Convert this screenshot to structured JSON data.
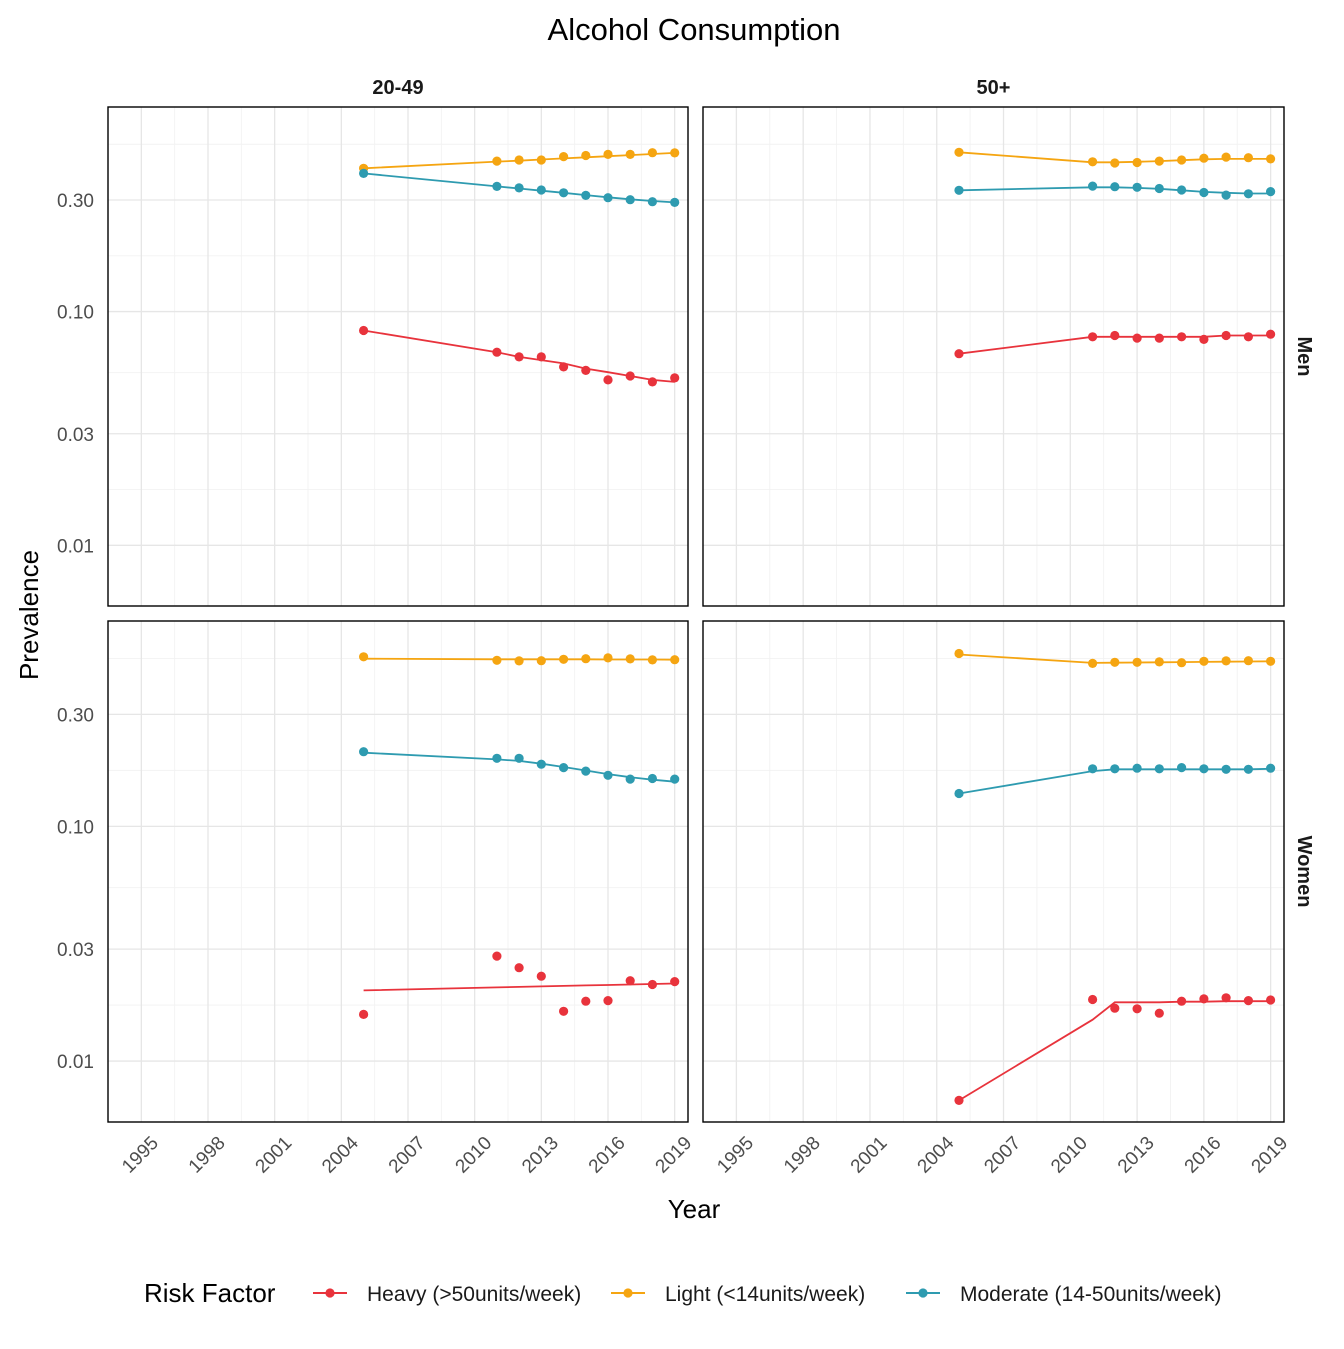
{
  "chart_data": {
    "type": "line",
    "title": "Alcohol Consumption",
    "xlabel": "Year",
    "ylabel": "Prevalence",
    "xlim": [
      1993.5,
      2019.6
    ],
    "x_ticks": [
      1995,
      1998,
      2001,
      2004,
      2007,
      2010,
      2013,
      2016,
      2019
    ],
    "y_scale": "log",
    "ylim": [
      0.0055,
      0.75
    ],
    "y_ticks": [
      0.01,
      0.03,
      0.1,
      0.3
    ],
    "y_tick_labels": [
      "0.01",
      "0.03",
      "0.10",
      "0.30"
    ],
    "grid": true,
    "legend": {
      "title": "Risk Factor",
      "position": "bottom",
      "entries": [
        {
          "label": "Heavy (>50units/week)",
          "color": "#e8333c"
        },
        {
          "label": "Light (<14units/week)",
          "color": "#f5a511"
        },
        {
          "label": "Moderate (14-50units/week)",
          "color": "#2e9bb0"
        }
      ]
    },
    "facet_columns": [
      "20-49",
      "50+"
    ],
    "facet_rows": [
      "Men",
      "Women"
    ],
    "panels": [
      {
        "row": "Men",
        "col": "20-49",
        "series": [
          {
            "name": "Heavy (>50units/week)",
            "x": [
              2005,
              2011,
              2012,
              2013,
              2014,
              2015,
              2016,
              2017,
              2018,
              2019
            ],
            "points": [
              0.083,
              0.067,
              0.064,
              0.064,
              0.058,
              0.056,
              0.051,
              0.053,
              0.05,
              0.052
            ],
            "fit": [
              0.083,
              0.067,
              0.064,
              0.062,
              0.06,
              0.057,
              0.055,
              0.053,
              0.051,
              0.05
            ]
          },
          {
            "name": "Light (<14units/week)",
            "x": [
              2005,
              2011,
              2012,
              2013,
              2014,
              2015,
              2016,
              2017,
              2018,
              2019
            ],
            "points": [
              0.41,
              0.44,
              0.445,
              0.445,
              0.46,
              0.465,
              0.47,
              0.47,
              0.478,
              0.477
            ],
            "fit": [
              0.41,
              0.438,
              0.442,
              0.447,
              0.452,
              0.457,
              0.462,
              0.467,
              0.472,
              0.477
            ]
          },
          {
            "name": "Moderate (14-50units/week)",
            "x": [
              2005,
              2011,
              2012,
              2013,
              2014,
              2015,
              2016,
              2017,
              2018,
              2019
            ],
            "points": [
              0.39,
              0.343,
              0.338,
              0.331,
              0.322,
              0.314,
              0.307,
              0.301,
              0.295,
              0.293
            ],
            "fit": [
              0.39,
              0.343,
              0.336,
              0.329,
              0.322,
              0.315,
              0.308,
              0.302,
              0.297,
              0.293
            ]
          }
        ]
      },
      {
        "row": "Men",
        "col": "50+",
        "series": [
          {
            "name": "Heavy (>50units/week)",
            "x": [
              2005,
              2011,
              2012,
              2013,
              2014,
              2015,
              2016,
              2017,
              2018,
              2019
            ],
            "points": [
              0.066,
              0.078,
              0.079,
              0.077,
              0.077,
              0.078,
              0.076,
              0.079,
              0.078,
              0.08
            ],
            "fit": [
              0.066,
              0.078,
              0.078,
              0.078,
              0.078,
              0.078,
              0.078,
              0.079,
              0.079,
              0.079
            ]
          },
          {
            "name": "Light (<14units/week)",
            "x": [
              2005,
              2011,
              2012,
              2013,
              2014,
              2015,
              2016,
              2017,
              2018,
              2019
            ],
            "points": [
              0.48,
              0.437,
              0.432,
              0.434,
              0.44,
              0.445,
              0.453,
              0.458,
              0.455,
              0.45
            ],
            "fit": [
              0.48,
              0.435,
              0.435,
              0.437,
              0.44,
              0.444,
              0.448,
              0.45,
              0.45,
              0.45
            ]
          },
          {
            "name": "Moderate (14-50units/week)",
            "x": [
              2005,
              2011,
              2012,
              2013,
              2014,
              2015,
              2016,
              2017,
              2018,
              2019
            ],
            "points": [
              0.33,
              0.344,
              0.342,
              0.34,
              0.336,
              0.331,
              0.323,
              0.315,
              0.319,
              0.326
            ],
            "fit": [
              0.33,
              0.34,
              0.34,
              0.338,
              0.335,
              0.33,
              0.325,
              0.322,
              0.32,
              0.32
            ]
          }
        ]
      },
      {
        "row": "Women",
        "col": "20-49",
        "series": [
          {
            "name": "Heavy (>50units/week)",
            "x": [
              2005,
              2011,
              2012,
              2013,
              2014,
              2015,
              2016,
              2017,
              2018,
              2019
            ],
            "points": [
              0.0158,
              0.028,
              0.025,
              0.023,
              0.0163,
              0.018,
              0.0181,
              0.022,
              0.0212,
              0.0218
            ],
            "fit": [
              0.02,
              0.0206,
              0.0207,
              0.0208,
              0.0209,
              0.021,
              0.0211,
              0.0212,
              0.0213,
              0.0214
            ]
          },
          {
            "name": "Light (<14units/week)",
            "x": [
              2005,
              2011,
              2012,
              2013,
              2014,
              2015,
              2016,
              2017,
              2018,
              2019
            ],
            "points": [
              0.528,
              0.51,
              0.507,
              0.508,
              0.515,
              0.518,
              0.522,
              0.517,
              0.512,
              0.513
            ],
            "fit": [
              0.518,
              0.515,
              0.515,
              0.515,
              0.515,
              0.515,
              0.514,
              0.514,
              0.514,
              0.513
            ]
          },
          {
            "name": "Moderate (14-50units/week)",
            "x": [
              2005,
              2011,
              2012,
              2013,
              2014,
              2015,
              2016,
              2017,
              2018,
              2019
            ],
            "points": [
              0.208,
              0.195,
              0.195,
              0.184,
              0.178,
              0.172,
              0.165,
              0.159,
              0.16,
              0.159
            ],
            "fit": [
              0.206,
              0.193,
              0.19,
              0.185,
              0.179,
              0.173,
              0.167,
              0.162,
              0.158,
              0.155
            ]
          }
        ]
      },
      {
        "row": "Women",
        "col": "50+",
        "series": [
          {
            "name": "Heavy (>50units/week)",
            "x": [
              2005,
              2011,
              2012,
              2013,
              2014,
              2015,
              2016,
              2017,
              2018,
              2019
            ],
            "points": [
              0.0068,
              0.0183,
              0.0168,
              0.0167,
              0.016,
              0.018,
              0.0184,
              0.0186,
              0.0181,
              0.0182
            ],
            "fit": [
              0.0068,
              0.015,
              0.0178,
              0.0178,
              0.0178,
              0.0179,
              0.0179,
              0.018,
              0.018,
              0.018
            ]
          },
          {
            "name": "Light (<14units/week)",
            "x": [
              2005,
              2011,
              2012,
              2013,
              2014,
              2015,
              2016,
              2017,
              2018,
              2019
            ],
            "points": [
              0.545,
              0.495,
              0.5,
              0.5,
              0.502,
              0.498,
              0.505,
              0.507,
              0.508,
              0.505
            ],
            "fit": [
              0.54,
              0.497,
              0.498,
              0.499,
              0.5,
              0.501,
              0.502,
              0.503,
              0.504,
              0.505
            ]
          },
          {
            "name": "Moderate (14-50units/week)",
            "x": [
              2005,
              2011,
              2012,
              2013,
              2014,
              2015,
              2016,
              2017,
              2018,
              2019
            ],
            "points": [
              0.138,
              0.176,
              0.176,
              0.177,
              0.176,
              0.178,
              0.176,
              0.175,
              0.175,
              0.177
            ],
            "fit": [
              0.138,
              0.172,
              0.175,
              0.175,
              0.175,
              0.175,
              0.175,
              0.175,
              0.175,
              0.176
            ]
          }
        ]
      }
    ]
  }
}
